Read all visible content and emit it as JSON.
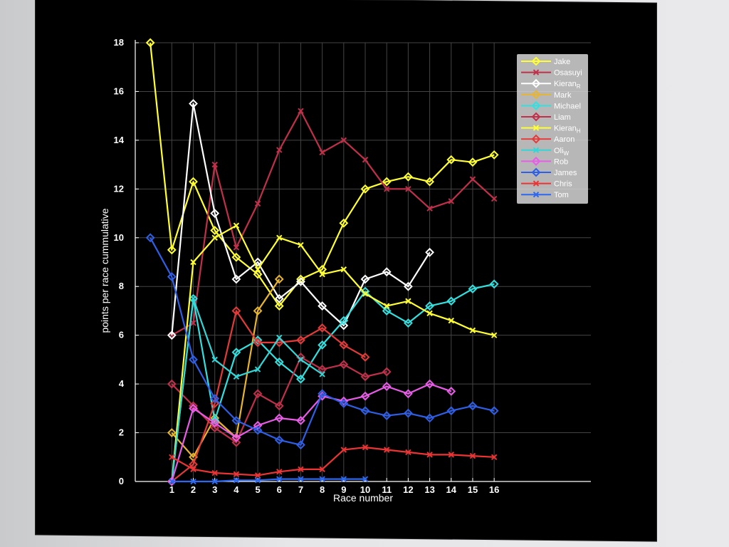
{
  "chart_data": {
    "type": "line",
    "title": "",
    "xlabel": "Race number",
    "ylabel": "points per race cummulative",
    "xlim": [
      -0.7,
      20.5
    ],
    "ylim": [
      0,
      18
    ],
    "xticks": [
      1,
      2,
      3,
      4,
      5,
      6,
      7,
      8,
      9,
      10,
      11,
      12,
      13,
      14,
      15,
      16
    ],
    "yticks": [
      0,
      2,
      4,
      6,
      8,
      10,
      12,
      14,
      16,
      18
    ],
    "grid": true,
    "legend_position": "top-right",
    "series": [
      {
        "name": "Jake",
        "label_base": "Jake",
        "label_sub": "",
        "color": "#ffff33",
        "marker": "diamond",
        "x": [
          0,
          1,
          2,
          3,
          4,
          5,
          6,
          7,
          8,
          9,
          10,
          11,
          12,
          13,
          14,
          15,
          16
        ],
        "y": [
          18,
          9.5,
          12.3,
          10.3,
          9.2,
          8.5,
          7.2,
          8.3,
          8.7,
          10.6,
          12.0,
          12.3,
          12.5,
          12.3,
          13.2,
          13.1,
          13.4
        ]
      },
      {
        "name": "Osasuyi",
        "label_base": "Osasuyi",
        "label_sub": "",
        "color": "#c0304a",
        "marker": "x",
        "x": [
          1,
          2,
          3,
          4,
          5,
          6,
          7,
          8,
          9,
          10,
          11,
          12,
          13,
          14,
          15,
          16
        ],
        "y": [
          6.0,
          6.5,
          13.0,
          9.6,
          11.4,
          13.6,
          15.2,
          13.5,
          14.0,
          13.2,
          12.0,
          12.0,
          11.2,
          11.5,
          12.4,
          11.6
        ]
      },
      {
        "name": "KieranR",
        "label_base": "Kieran",
        "label_sub": "R",
        "color": "#ffffff",
        "marker": "diamond",
        "x": [
          1,
          2,
          3,
          4,
          5,
          6,
          7,
          8,
          9,
          10,
          11,
          12,
          13
        ],
        "y": [
          6.0,
          15.5,
          11.0,
          8.3,
          9.0,
          7.5,
          8.2,
          7.2,
          6.4,
          8.3,
          8.6,
          8.0,
          9.4
        ]
      },
      {
        "name": "Mark",
        "label_base": "Mark",
        "label_sub": "",
        "color": "#e7b530",
        "marker": "diamond",
        "x": [
          1,
          2,
          3,
          4,
          5,
          6
        ],
        "y": [
          2.0,
          1.0,
          2.6,
          1.8,
          7.0,
          8.3
        ]
      },
      {
        "name": "Michael",
        "label_base": "Michael",
        "label_sub": "",
        "color": "#33e0e0",
        "marker": "diamond",
        "x": [
          1,
          2,
          3,
          4,
          5,
          6,
          7,
          8,
          9,
          10,
          11,
          12,
          13,
          14,
          15,
          16
        ],
        "y": [
          0,
          7.5,
          2.5,
          5.3,
          5.8,
          4.9,
          4.2,
          5.6,
          6.6,
          7.8,
          7.0,
          6.5,
          7.2,
          7.4,
          7.9,
          8.1
        ]
      },
      {
        "name": "Liam",
        "label_base": "Liam",
        "label_sub": "",
        "color": "#c0304a",
        "marker": "diamond",
        "x": [
          1,
          2,
          3,
          4,
          5,
          6,
          7,
          8,
          9,
          10,
          11
        ],
        "y": [
          4.0,
          3.1,
          2.2,
          1.6,
          3.6,
          3.1,
          5.1,
          4.6,
          4.8,
          4.3,
          4.5
        ]
      },
      {
        "name": "KieranH",
        "label_base": "Kieran",
        "label_sub": "H",
        "color": "#ffff33",
        "marker": "x",
        "x": [
          1,
          2,
          3,
          4,
          5,
          6,
          7,
          8,
          9,
          10,
          11,
          12,
          13,
          14,
          15,
          16
        ],
        "y": [
          0,
          9.0,
          10.0,
          10.5,
          8.7,
          10.0,
          9.7,
          8.5,
          8.7,
          7.7,
          7.2,
          7.4,
          6.9,
          6.6,
          6.2,
          6.0
        ]
      },
      {
        "name": "Aaron",
        "label_base": "Aaron",
        "label_sub": "",
        "color": "#e33a3a",
        "marker": "diamond",
        "x": [
          1,
          2,
          3,
          4,
          5,
          6,
          7,
          8,
          9,
          10
        ],
        "y": [
          0,
          0.7,
          3.2,
          7.0,
          5.7,
          5.7,
          5.8,
          6.3,
          5.6,
          5.1
        ]
      },
      {
        "name": "OliW",
        "label_base": "Oli",
        "label_sub": "W",
        "color": "#33d6d6",
        "marker": "x",
        "x": [
          1,
          2,
          3,
          4,
          5,
          6,
          7,
          8
        ],
        "y": [
          0,
          7.5,
          5.0,
          4.3,
          4.6,
          5.9,
          5.0,
          4.4
        ]
      },
      {
        "name": "Rob",
        "label_base": "Rob",
        "label_sub": "",
        "color": "#e85ce8",
        "marker": "diamond",
        "x": [
          1,
          2,
          3,
          4,
          5,
          6,
          7,
          8,
          9,
          10,
          11,
          12,
          13,
          14
        ],
        "y": [
          0,
          3.0,
          2.4,
          1.8,
          2.3,
          2.6,
          2.5,
          3.5,
          3.3,
          3.5,
          3.9,
          3.6,
          4.0,
          3.7
        ]
      },
      {
        "name": "James",
        "label_base": "James",
        "label_sub": "",
        "color": "#2e5fe6",
        "marker": "diamond",
        "x": [
          0,
          1,
          2,
          3,
          4,
          5,
          6,
          7,
          8,
          9,
          10,
          11,
          12,
          13,
          14,
          15,
          16
        ],
        "y": [
          10.0,
          8.4,
          5.0,
          3.4,
          2.5,
          2.1,
          1.7,
          1.5,
          3.6,
          3.2,
          2.9,
          2.7,
          2.8,
          2.6,
          2.9,
          3.1,
          2.9
        ]
      },
      {
        "name": "Chris",
        "label_base": "Chris",
        "label_sub": "",
        "color": "#ec3434",
        "marker": "x",
        "x": [
          1,
          2,
          3,
          4,
          5,
          6,
          7,
          8,
          9,
          10,
          11,
          12,
          13,
          14,
          15,
          16
        ],
        "y": [
          1.0,
          0.5,
          0.35,
          0.3,
          0.25,
          0.4,
          0.5,
          0.5,
          1.3,
          1.4,
          1.3,
          1.2,
          1.1,
          1.1,
          1.05,
          1.0
        ]
      },
      {
        "name": "Tom",
        "label_base": "Tom",
        "label_sub": "",
        "color": "#2c68f0",
        "marker": "x",
        "x": [
          1,
          2,
          3,
          4,
          5,
          6,
          7,
          8,
          9,
          10
        ],
        "y": [
          0,
          0,
          0,
          0.05,
          0.05,
          0.1,
          0.1,
          0.1,
          0.1,
          0.1
        ]
      }
    ]
  },
  "colors": {
    "background": "#000000",
    "grid": "#444444",
    "axis": "#ffffff",
    "legend_bg": "#d7d7d7"
  }
}
